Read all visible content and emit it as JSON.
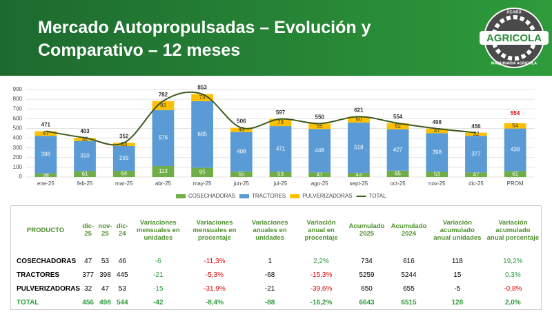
{
  "header": {
    "title": "Mercado Autopropulsadas – Evolución y Comparativo – 12 meses",
    "logo": {
      "top": "ACARA",
      "name": "AGRICOLA",
      "bottom": "MAQUINARIA AGRICOLA"
    }
  },
  "chart_data": {
    "type": "stacked-bar",
    "categories": [
      "ene-25",
      "feb-25",
      "mar-25",
      "abr-25",
      "may-25",
      "jun-25",
      "jul-25",
      "ago-25",
      "sept-25",
      "oct-25",
      "nov-25",
      "dic-25",
      "PROM"
    ],
    "series": [
      {
        "name": "COSECHADORAS",
        "color": "#70ad47",
        "values": [
          38,
          61,
          64,
          113,
          95,
          55,
          53,
          47,
          43,
          65,
          53,
          47,
          61
        ]
      },
      {
        "name": "TRACTORES",
        "color": "#5b9bd5",
        "values": [
          386,
          310,
          255,
          576,
          685,
          408,
          471,
          448,
          518,
          427,
          398,
          377,
          438
        ]
      },
      {
        "name": "PULVERIZADORAS",
        "color": "#ffc000",
        "values": [
          47,
          32,
          33,
          93,
          73,
          43,
          73,
          55,
          60,
          62,
          47,
          32,
          54
        ]
      },
      {
        "name": "TOTAL",
        "type": "line",
        "color": "#3d5a1e",
        "values": [
          471,
          403,
          352,
          782,
          853,
          506,
          597,
          550,
          621,
          554,
          498,
          456,
          null
        ]
      }
    ],
    "annotations": [
      {
        "value": 554,
        "color": "#e00000"
      }
    ],
    "ylim": [
      0,
      900
    ],
    "yticks": [
      0,
      100,
      200,
      300,
      400,
      500,
      600,
      700,
      800,
      900
    ],
    "grid": true
  },
  "table": {
    "headers": [
      "PRODUCTO",
      "dic-25",
      "nov-25",
      "dic-24",
      "Variaciones mensuales en unidades",
      "Variaciones mensuales en procentaje",
      "Variaciones anuales en unidades",
      "Variación anual en procentaje",
      "Acumulado 2025",
      "Acumulado 2024",
      "Variación acumulado anual unidades",
      "Variación acumulado anual porcentaje"
    ],
    "column_colors": [
      "black",
      "black",
      "black",
      "black",
      "green",
      "sign",
      "black",
      "sign",
      "black",
      "black",
      "black",
      "sign"
    ],
    "rows": [
      [
        "COSECHADORAS",
        "47",
        "53",
        "46",
        "-6",
        "-11,3%",
        "1",
        "2,2%",
        "734",
        "616",
        "118",
        "19,2%"
      ],
      [
        "TRACTORES",
        "377",
        "398",
        "445",
        "-21",
        "-5,3%",
        "-68",
        "-15,3%",
        "5259",
        "5244",
        "15",
        "0,3%"
      ],
      [
        "PULVERIZADORAS",
        "32",
        "47",
        "53",
        "-15",
        "-31,9%",
        "-21",
        "-39,6%",
        "650",
        "655",
        "-5",
        "-0,8%"
      ]
    ],
    "total": [
      "TOTAL",
      "456",
      "498",
      "544",
      "-42",
      "-8,4%",
      "-88",
      "-16,2%",
      "6643",
      "6515",
      "128",
      "2,0%"
    ]
  }
}
